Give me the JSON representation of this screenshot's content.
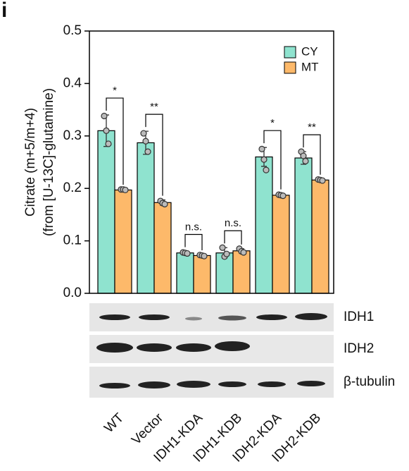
{
  "panel_label": "i",
  "chart_data": {
    "type": "bar",
    "ylabel": [
      "Citrate (m+5/m+4)",
      "(from [U-13C]-glutamine)"
    ],
    "categories": [
      "WT",
      "Vector",
      "IDH1-KDA",
      "IDH1-KDB",
      "IDH2-KDA",
      "IDH2-KDB"
    ],
    "series": [
      {
        "name": "CY",
        "color": "#8fe3cf",
        "values": [
          0.31,
          0.287,
          0.077,
          0.077,
          0.26,
          0.258
        ],
        "errors": [
          0.03,
          0.022,
          0.003,
          0.01,
          0.018,
          0.012
        ],
        "points": [
          [
            0.338,
            0.31,
            0.285
          ],
          [
            0.305,
            0.29,
            0.27
          ],
          [
            0.078,
            0.077,
            0.076
          ],
          [
            0.087,
            0.07,
            0.075
          ],
          [
            0.275,
            0.255,
            0.235
          ],
          [
            0.27,
            0.262,
            0.252
          ]
        ]
      },
      {
        "name": "MT",
        "color": "#fdb96a",
        "values": [
          0.197,
          0.173,
          0.072,
          0.081,
          0.187,
          0.216
        ],
        "errors": [
          0.002,
          0.005,
          0.002,
          0.004,
          0.003,
          0.002
        ],
        "points": [
          [
            0.198,
            0.198,
            0.197
          ],
          [
            0.176,
            0.172,
            0.17
          ],
          [
            0.073,
            0.072,
            0.071
          ],
          [
            0.085,
            0.08,
            0.078
          ],
          [
            0.188,
            0.187,
            0.186
          ],
          [
            0.217,
            0.216,
            0.215
          ]
        ]
      }
    ],
    "significance": [
      "*",
      "**",
      "n.s.",
      "n.s.",
      "*",
      "**"
    ],
    "ylim": [
      0,
      0.5
    ],
    "yticks": [
      {
        "value": 0,
        "label": "0.0"
      },
      0.1,
      0.2,
      0.3,
      0.4,
      0.5
    ],
    "legend": "top-right"
  },
  "blots": [
    "IDH1",
    "IDH2",
    "β-tubulin"
  ]
}
